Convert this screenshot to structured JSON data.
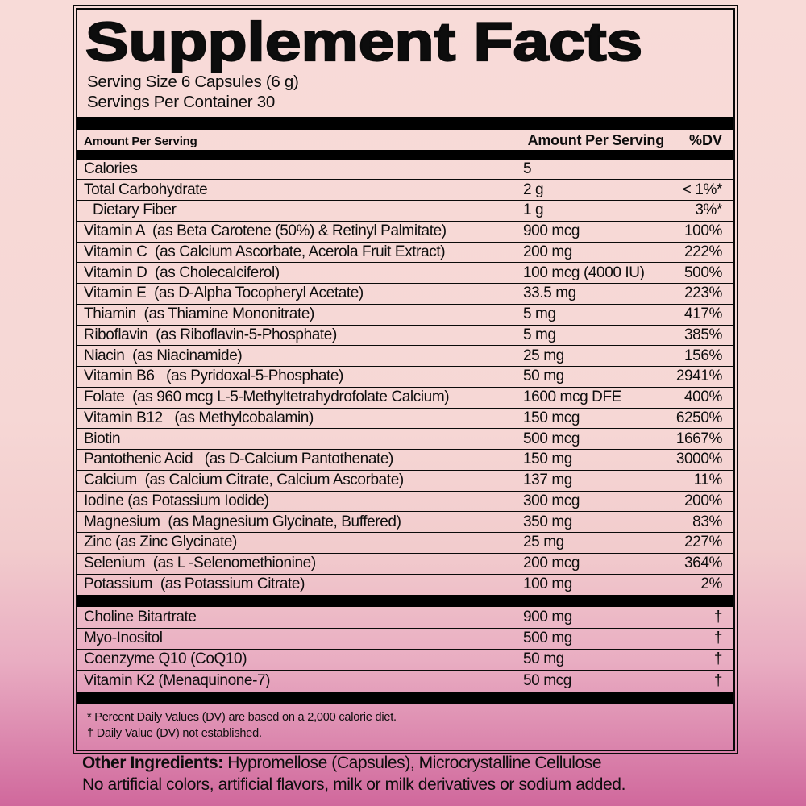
{
  "panel": {
    "title": "Supplement Facts",
    "serving_size": "Serving Size 6 Capsules (6 g)",
    "servings_per_container": "Servings Per Container 30",
    "header": {
      "left": "Amount Per Serving",
      "amount": "Amount Per Serving",
      "dv": "%DV"
    },
    "rows_main": [
      {
        "name": "Calories",
        "amount": "5",
        "dv": "",
        "indent": false
      },
      {
        "name": "Total Carbohydrate",
        "amount": "2 g",
        "dv": "< 1%*",
        "indent": false
      },
      {
        "name": "Dietary Fiber",
        "amount": "1 g",
        "dv": "3%*",
        "indent": true
      },
      {
        "name": "Vitamin A  (as Beta Carotene (50%) & Retinyl Palmitate)",
        "amount": "900 mcg",
        "dv": "100%",
        "indent": false
      },
      {
        "name": "Vitamin C  (as Calcium Ascorbate, Acerola Fruit Extract)",
        "amount": "200 mg",
        "dv": "222%",
        "indent": false
      },
      {
        "name": "Vitamin D  (as Cholecalciferol)",
        "amount": "100 mcg (4000 IU)",
        "dv": "500%",
        "indent": false
      },
      {
        "name": "Vitamin E  (as D-Alpha Tocopheryl Acetate)",
        "amount": "33.5 mg",
        "dv": "223%",
        "indent": false
      },
      {
        "name": "Thiamin  (as Thiamine Mononitrate)",
        "amount": "5 mg",
        "dv": "417%",
        "indent": false
      },
      {
        "name": "Riboflavin  (as Riboflavin-5-Phosphate)",
        "amount": "5 mg",
        "dv": "385%",
        "indent": false
      },
      {
        "name": "Niacin  (as Niacinamide)",
        "amount": "25 mg",
        "dv": "156%",
        "indent": false
      },
      {
        "name": "Vitamin B6   (as Pyridoxal-5-Phosphate)",
        "amount": "50 mg",
        "dv": "2941%",
        "indent": false
      },
      {
        "name": "Folate  (as 960 mcg L-5-Methyltetrahydrofolate Calcium)",
        "amount": "1600 mcg DFE",
        "dv": "400%",
        "indent": false
      },
      {
        "name": "Vitamin B12   (as Methylcobalamin)",
        "amount": "150 mcg",
        "dv": "6250%",
        "indent": false
      },
      {
        "name": "Biotin",
        "amount": "500 mcg",
        "dv": "1667%",
        "indent": false
      },
      {
        "name": "Pantothenic Acid   (as D-Calcium Pantothenate)",
        "amount": "150 mg",
        "dv": "3000%",
        "indent": false
      },
      {
        "name": "Calcium  (as Calcium Citrate, Calcium Ascorbate)",
        "amount": "137 mg",
        "dv": "11%",
        "indent": false
      },
      {
        "name": "Iodine (as Potassium Iodide)",
        "amount": "300 mcg",
        "dv": "200%",
        "indent": false
      },
      {
        "name": "Magnesium  (as Magnesium Glycinate, Buffered)",
        "amount": "350 mg",
        "dv": "83%",
        "indent": false
      },
      {
        "name": "Zinc (as Zinc Glycinate)",
        "amount": "25 mg",
        "dv": "227%",
        "indent": false
      },
      {
        "name": "Selenium  (as L -Selenomethionine)",
        "amount": "200 mcg",
        "dv": "364%",
        "indent": false
      },
      {
        "name": "Potassium  (as Potassium Citrate)",
        "amount": "100 mg",
        "dv": "2%",
        "indent": false
      }
    ],
    "rows_extra": [
      {
        "name": "Choline Bitartrate",
        "amount": "900 mg",
        "dv": "†",
        "indent": false
      },
      {
        "name": "Myo-Inositol",
        "amount": "500 mg",
        "dv": "†",
        "indent": false
      },
      {
        "name": "Coenzyme Q10 (CoQ10)",
        "amount": "50 mg",
        "dv": "†",
        "indent": false
      },
      {
        "name": "Vitamin K2 (Menaquinone-7)",
        "amount": "50 mcg",
        "dv": "†",
        "indent": false
      }
    ],
    "footnotes": [
      "* Percent Daily Values (DV) are based on a 2,000 calorie diet.",
      "† Daily Value (DV) not established."
    ]
  },
  "other_ingredients": {
    "label": "Other Ingredients:",
    "text": "Hypromellose (Capsules), Microcrystalline Cellulose",
    "statement": "No artificial colors, artificial flavors, milk or milk derivatives or sodium added."
  },
  "colors": {
    "background_top": "#f8dbd8",
    "background_bottom": "#d0689c",
    "bar": "#000000",
    "text": "#0d0d0d"
  }
}
